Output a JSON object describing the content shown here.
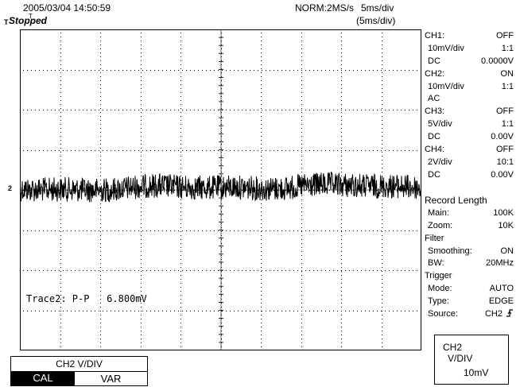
{
  "header": {
    "datetime": "2005/03/04  14:50:59",
    "acquisition": "NORM:2MS/s",
    "timebase": "5ms/div",
    "timebase_zoom": "(5ms/div)",
    "status": "Stopped"
  },
  "markers": {
    "trigger_t": "T",
    "trigger_top": "T",
    "channel_marker": "2"
  },
  "measurement": {
    "label": "Trace2: P-P",
    "value": "6.800mV"
  },
  "channels": [
    {
      "name": "CH1:",
      "state": "OFF",
      "vdiv": "10mV/div",
      "probe": "1:1",
      "coupling": "DC",
      "offset": "0.0000V"
    },
    {
      "name": "CH2:",
      "state": "ON",
      "vdiv": "10mV/div",
      "probe": "1:1",
      "coupling": "AC",
      "offset": ""
    },
    {
      "name": "CH3:",
      "state": "OFF",
      "vdiv": "5V/div",
      "probe": "1:1",
      "coupling": "DC",
      "offset": "0.00V"
    },
    {
      "name": "CH4:",
      "state": "OFF",
      "vdiv": "2V/div",
      "probe": "10:1",
      "coupling": "DC",
      "offset": "0.00V"
    }
  ],
  "record": {
    "title": "Record  Length",
    "main_label": "Main:",
    "main_value": "100K",
    "zoom_label": "Zoom:",
    "zoom_value": "10K"
  },
  "filter": {
    "title": "Filter",
    "smoothing_label": "Smoothing:",
    "smoothing_value": "ON",
    "bw_label": "BW:",
    "bw_value": "20MHz"
  },
  "trigger": {
    "title": "Trigger",
    "mode_label": "Mode:",
    "mode_value": "AUTO",
    "type_label": "Type:",
    "type_value": "EDGE",
    "source_label": "Source:",
    "source_value": "CH2"
  },
  "vdiv_box": {
    "line1": "CH2",
    "line2": "V/DIV",
    "value": "10mV"
  },
  "softkey": {
    "title": "CH2  V/DIV",
    "cal": "CAL",
    "var": "VAR"
  },
  "colors": {
    "trace": "#000000",
    "grid": "#000000",
    "background": "#ffffff"
  },
  "grid": {
    "divisions_x": 10,
    "divisions_y": 8
  },
  "trace": {
    "channel": "CH2",
    "peak_to_peak_mV": 6.8,
    "vertical_div_mV": 10
  }
}
